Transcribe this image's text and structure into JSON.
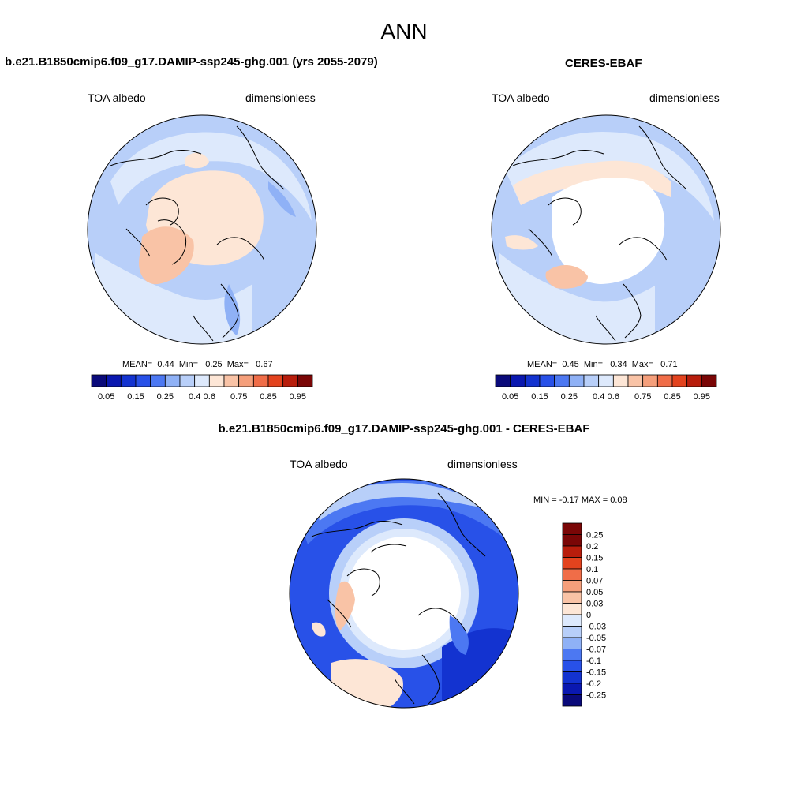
{
  "title": "ANN",
  "palette": {
    "seq": [
      "#0a0a7a",
      "#0a18b0",
      "#1333d0",
      "#2851e8",
      "#4c78f2",
      "#8fb1f6",
      "#b8cff9",
      "#dde9fc",
      "#fde6d6",
      "#f9c3a6",
      "#f59f7b",
      "#f06d48",
      "#e3431e",
      "#b81d0c",
      "#7a0606"
    ],
    "diff": [
      "#7a0606",
      "#b81d0c",
      "#e3431e",
      "#f06d48",
      "#f59f7b",
      "#f9c3a6",
      "#fde6d6",
      "#dde9fc",
      "#b8cff9",
      "#8fb1f6",
      "#4c78f2",
      "#2851e8",
      "#1333d0",
      "#0a18b0",
      "#0a0a7a"
    ]
  },
  "panels": {
    "model": {
      "title": "b.e21.B1850cmip6.f09_g17.DAMIP-ssp245-ghg.001 (yrs 2055-2079)",
      "variable": "TOA albedo",
      "units": "dimensionless",
      "stats": {
        "mean_label": "MEAN=",
        "mean": "0.44",
        "min_label": "Min=",
        "min": "0.25",
        "max_label": "Max=",
        "max": "0.67"
      },
      "colorbar_ticks": [
        "0.05",
        "0.15",
        "0.25",
        "0.4",
        "0.6",
        "0.75",
        "0.85",
        "0.95"
      ]
    },
    "obs": {
      "title": "CERES-EBAF",
      "variable": "TOA albedo",
      "units": "dimensionless",
      "stats": {
        "mean_label": "MEAN=",
        "mean": "0.45",
        "min_label": "Min=",
        "min": "0.34",
        "max_label": "Max=",
        "max": "0.71"
      },
      "colorbar_ticks": [
        "0.05",
        "0.15",
        "0.25",
        "0.4",
        "0.6",
        "0.75",
        "0.85",
        "0.95"
      ]
    },
    "diff": {
      "title": "b.e21.B1850cmip6.f09_g17.DAMIP-ssp245-ghg.001 - CERES-EBAF",
      "variable": "TOA albedo",
      "units": "dimensionless",
      "minmax": "MIN =  -0.17 MAX =   0.08",
      "colorbar_ticks": [
        "0.25",
        "0.2",
        "0.15",
        "0.1",
        "0.07",
        "0.05",
        "0.03",
        "0",
        "-0.03",
        "-0.05",
        "-0.07",
        "-0.1",
        "-0.15",
        "-0.2",
        "-0.25"
      ]
    }
  }
}
